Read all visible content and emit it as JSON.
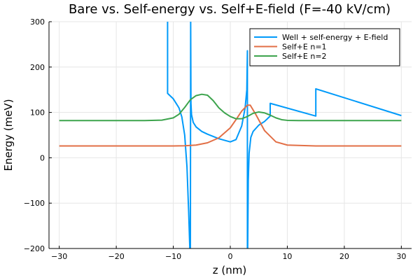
{
  "chart_data": {
    "type": "line",
    "title": "Bare vs. Self-energy vs. Self+E-field (F=-40 kV/cm)",
    "xlabel": "z (nm)",
    "ylabel": "Energy (meV)",
    "xlim": [
      -31.8,
      31.8
    ],
    "ylim": [
      -200,
      300
    ],
    "xticks": [
      -30,
      -20,
      -10,
      0,
      10,
      20,
      30
    ],
    "xtick_labels": [
      "−30",
      "−20",
      "−10",
      "0",
      "10",
      "20",
      "30"
    ],
    "yticks": [
      -200,
      -100,
      0,
      100,
      200,
      300
    ],
    "ytick_labels": [
      "−200",
      "−100",
      "0",
      "100",
      "200",
      "300"
    ],
    "grid": true,
    "legend_position": "top-right",
    "series": [
      {
        "name": "Well + self-energy + E-field",
        "color": "#009AFA",
        "x": [
          -11.0,
          -11.0,
          -10.0,
          -9.0,
          -8.5,
          -8.0,
          -7.6,
          -7.3,
          -7.1,
          -7.0,
          -6.95,
          -6.9,
          -6.8,
          -6.5,
          -6.0,
          -5.0,
          -4.0,
          -2.0,
          0.0,
          1.0,
          2.0,
          2.6,
          2.9,
          3.0,
          3.0,
          3.05,
          3.15,
          3.3,
          3.6,
          4.0,
          5.0,
          6.0,
          7.0,
          7.0,
          15.0,
          15.0,
          30.0
        ],
        "y": [
          300,
          142,
          130,
          110,
          90,
          50,
          -20,
          -120,
          -200,
          -200,
          300,
          120,
          95,
          78,
          68,
          58,
          52,
          42,
          35,
          40,
          70,
          110,
          150,
          236,
          -200,
          -200,
          -50,
          10,
          45,
          58,
          72,
          80,
          92,
          120,
          92,
          152,
          93
        ]
      },
      {
        "name": "Self+E n=1",
        "color": "#E26F46",
        "x": [
          -30.0,
          -20.0,
          -15.0,
          -10.0,
          -8.0,
          -6.0,
          -4.0,
          -2.0,
          0.0,
          1.0,
          2.0,
          3.0,
          3.5,
          4.5,
          6.0,
          8.0,
          10.0,
          15.0,
          20.0,
          30.0
        ],
        "y": [
          26,
          26,
          26,
          26,
          26.5,
          28,
          33,
          44,
          66,
          84,
          103,
          116,
          116,
          95,
          60,
          35,
          28,
          26,
          26,
          26
        ]
      },
      {
        "name": "Self+E n=2",
        "color": "#3DA44D",
        "x": [
          -30.0,
          -20.0,
          -15.0,
          -12.0,
          -10.0,
          -9.0,
          -8.0,
          -7.0,
          -6.0,
          -5.0,
          -4.0,
          -3.0,
          -2.0,
          -1.0,
          0.0,
          1.0,
          2.0,
          3.0,
          4.0,
          5.0,
          6.0,
          7.0,
          8.0,
          9.0,
          10.0,
          12.0,
          15.0,
          20.0,
          30.0
        ],
        "y": [
          82,
          82,
          82,
          83,
          88,
          96,
          111,
          128,
          137,
          140,
          138,
          126,
          110,
          99,
          91,
          86,
          86,
          91,
          98,
          101,
          99,
          94,
          88,
          84,
          82.5,
          82,
          82,
          82,
          82
        ]
      }
    ]
  }
}
